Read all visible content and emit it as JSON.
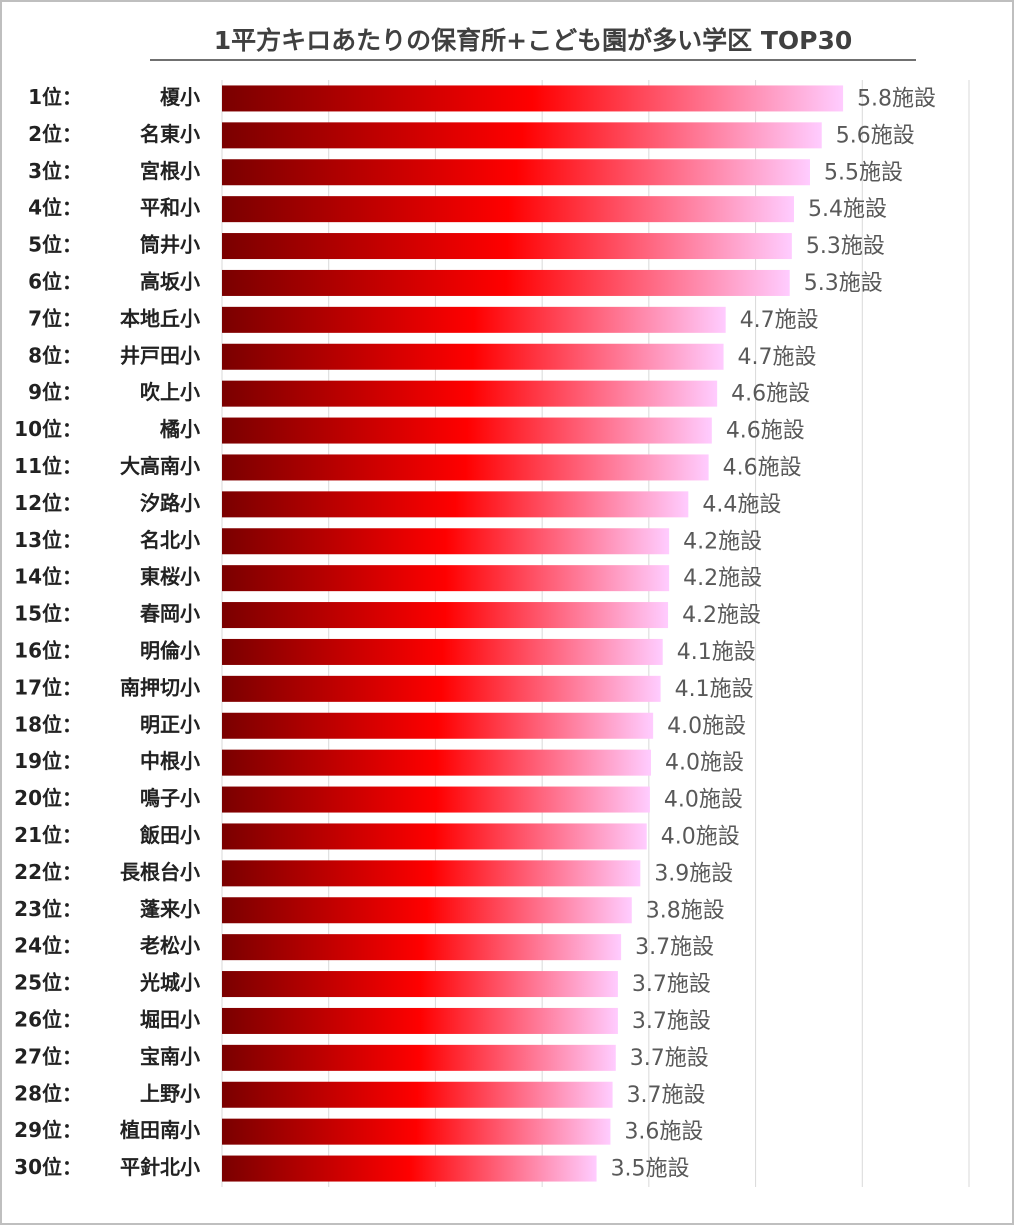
{
  "chart_data": {
    "type": "hbar",
    "title": "1平方キロあたりの保育所+こども園が多い学区 TOP30",
    "ranks": [
      "1位：",
      "2位：",
      "3位：",
      "4位：",
      "5位：",
      "6位：",
      "7位：",
      "8位：",
      "9位：",
      "10位：",
      "11位：",
      "12位：",
      "13位：",
      "14位：",
      "15位：",
      "16位：",
      "17位：",
      "18位：",
      "19位：",
      "20位：",
      "21位：",
      "22位：",
      "23位：",
      "24位：",
      "25位：",
      "26位：",
      "27位：",
      "28位：",
      "29位：",
      "30位："
    ],
    "categories": [
      "榎小",
      "名東小",
      "宮根小",
      "平和小",
      "筒井小",
      "高坂小",
      "本地丘小",
      "井戸田小",
      "吹上小",
      "橘小",
      "大高南小",
      "汐路小",
      "名北小",
      "東桜小",
      "春岡小",
      "明倫小",
      "南押切小",
      "明正小",
      "中根小",
      "鳴子小",
      "飯田小",
      "長根台小",
      "蓬来小",
      "老松小",
      "光城小",
      "堀田小",
      "宝南小",
      "上野小",
      "植田南小",
      "平針北小"
    ],
    "values": [
      5.82,
      5.62,
      5.51,
      5.36,
      5.34,
      5.32,
      4.72,
      4.7,
      4.64,
      4.59,
      4.56,
      4.37,
      4.19,
      4.19,
      4.18,
      4.13,
      4.11,
      4.04,
      4.02,
      4.01,
      3.98,
      3.92,
      3.84,
      3.74,
      3.71,
      3.71,
      3.69,
      3.66,
      3.64,
      3.51
    ],
    "value_labels": [
      "5.8施設",
      "5.6施設",
      "5.5施設",
      "5.4施設",
      "5.3施設",
      "5.3施設",
      "4.7施設",
      "4.7施設",
      "4.6施設",
      "4.6施設",
      "4.6施設",
      "4.4施設",
      "4.2施設",
      "4.2施設",
      "4.2施設",
      "4.1施設",
      "4.1施設",
      "4.0施設",
      "4.0施設",
      "4.0施設",
      "4.0施設",
      "3.9施設",
      "3.8施設",
      "3.7施設",
      "3.7施設",
      "3.7施設",
      "3.7施設",
      "3.7施設",
      "3.6施設",
      "3.5施設"
    ],
    "color_stops": [
      "#7a0000",
      "#ff0000",
      "#ffccff"
    ],
    "xlim": [
      0,
      7
    ],
    "xticks": [
      0,
      1,
      2,
      3,
      4,
      5,
      6,
      7
    ],
    "grid": true
  }
}
